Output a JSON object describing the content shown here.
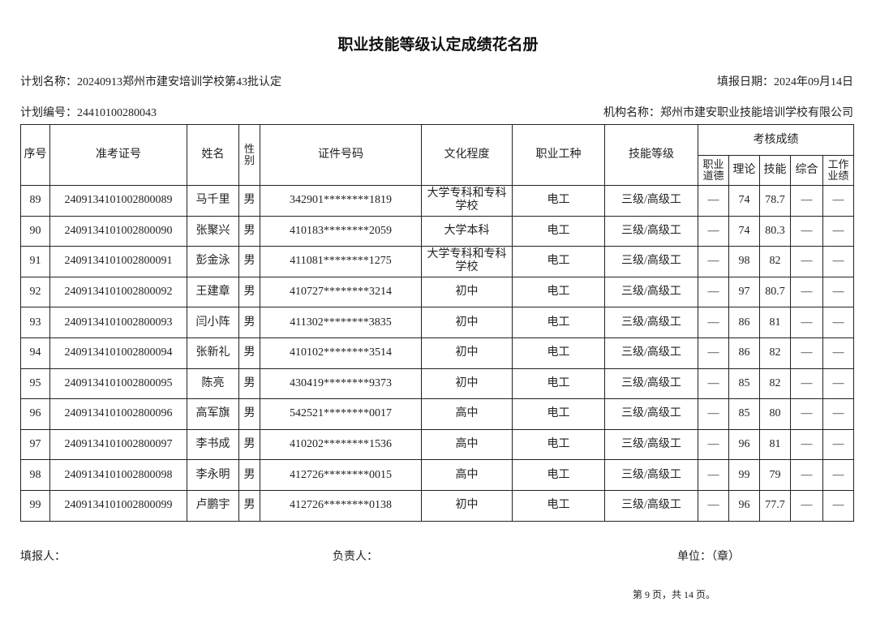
{
  "title": "职业技能等级认定成绩花名册",
  "plan_name": "计划名称：20240913郑州市建安培训学校第43批认定",
  "fill_date": "填报日期：2024年09月14日",
  "plan_no": "计划编号：24410100280043",
  "org_name": "机构名称：郑州市建安职业技能培训学校有限公司",
  "headers": {
    "seq": "序号",
    "exam_no": "准考证号",
    "name": "姓名",
    "gender": "性别",
    "id_no": "证件号码",
    "education": "文化程度",
    "occupation": "职业工种",
    "level": "技能等级",
    "scores": "考核成绩",
    "ethics": "职业道德",
    "theory": "理论",
    "skill": "技能",
    "overall": "综合",
    "performance": "工作业绩"
  },
  "rows": [
    {
      "seq": "89",
      "exam_no": "2409134101002800089",
      "name": "马千里",
      "gender": "男",
      "id_no": "342901********1819",
      "education": "大学专科和专科学校",
      "occupation": "电工",
      "level": "三级/高级工",
      "ethics": "—",
      "theory": "74",
      "skill": "78.7",
      "overall": "—",
      "performance": "—"
    },
    {
      "seq": "90",
      "exam_no": "2409134101002800090",
      "name": "张聚兴",
      "gender": "男",
      "id_no": "410183********2059",
      "education": "大学本科",
      "occupation": "电工",
      "level": "三级/高级工",
      "ethics": "—",
      "theory": "74",
      "skill": "80.3",
      "overall": "—",
      "performance": "—"
    },
    {
      "seq": "91",
      "exam_no": "2409134101002800091",
      "name": "彭金泳",
      "gender": "男",
      "id_no": "411081********1275",
      "education": "大学专科和专科学校",
      "occupation": "电工",
      "level": "三级/高级工",
      "ethics": "—",
      "theory": "98",
      "skill": "82",
      "overall": "—",
      "performance": "—"
    },
    {
      "seq": "92",
      "exam_no": "2409134101002800092",
      "name": "王建章",
      "gender": "男",
      "id_no": "410727********3214",
      "education": "初中",
      "occupation": "电工",
      "level": "三级/高级工",
      "ethics": "—",
      "theory": "97",
      "skill": "80.7",
      "overall": "—",
      "performance": "—"
    },
    {
      "seq": "93",
      "exam_no": "2409134101002800093",
      "name": "闫小阵",
      "gender": "男",
      "id_no": "411302********3835",
      "education": "初中",
      "occupation": "电工",
      "level": "三级/高级工",
      "ethics": "—",
      "theory": "86",
      "skill": "81",
      "overall": "—",
      "performance": "—"
    },
    {
      "seq": "94",
      "exam_no": "2409134101002800094",
      "name": "张新礼",
      "gender": "男",
      "id_no": "410102********3514",
      "education": "初中",
      "occupation": "电工",
      "level": "三级/高级工",
      "ethics": "—",
      "theory": "86",
      "skill": "82",
      "overall": "—",
      "performance": "—"
    },
    {
      "seq": "95",
      "exam_no": "2409134101002800095",
      "name": "陈亮",
      "gender": "男",
      "id_no": "430419********9373",
      "education": "初中",
      "occupation": "电工",
      "level": "三级/高级工",
      "ethics": "—",
      "theory": "85",
      "skill": "82",
      "overall": "—",
      "performance": "—"
    },
    {
      "seq": "96",
      "exam_no": "2409134101002800096",
      "name": "高军旗",
      "gender": "男",
      "id_no": "542521********0017",
      "education": "高中",
      "occupation": "电工",
      "level": "三级/高级工",
      "ethics": "—",
      "theory": "85",
      "skill": "80",
      "overall": "—",
      "performance": "—"
    },
    {
      "seq": "97",
      "exam_no": "2409134101002800097",
      "name": "李书成",
      "gender": "男",
      "id_no": "410202********1536",
      "education": "高中",
      "occupation": "电工",
      "level": "三级/高级工",
      "ethics": "—",
      "theory": "96",
      "skill": "81",
      "overall": "—",
      "performance": "—"
    },
    {
      "seq": "98",
      "exam_no": "2409134101002800098",
      "name": "李永明",
      "gender": "男",
      "id_no": "412726********0015",
      "education": "高中",
      "occupation": "电工",
      "level": "三级/高级工",
      "ethics": "—",
      "theory": "99",
      "skill": "79",
      "overall": "—",
      "performance": "—"
    },
    {
      "seq": "99",
      "exam_no": "2409134101002800099",
      "name": "卢鹏宇",
      "gender": "男",
      "id_no": "412726********0138",
      "education": "初中",
      "occupation": "电工",
      "level": "三级/高级工",
      "ethics": "—",
      "theory": "96",
      "skill": "77.7",
      "overall": "—",
      "performance": "—"
    }
  ],
  "footer": {
    "filler": "填报人：",
    "responsible": "负责人：",
    "unit": "单位：（章）",
    "page": "第 9 页，共 14 页。"
  }
}
